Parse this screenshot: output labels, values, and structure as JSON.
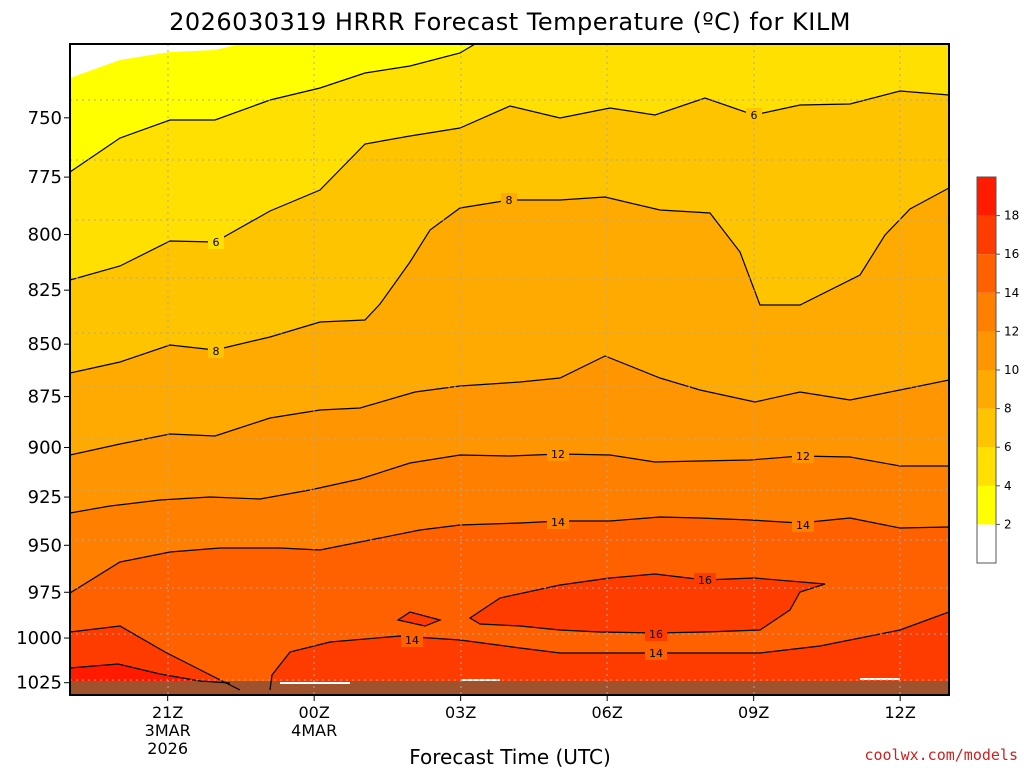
{
  "chart_data": {
    "type": "contour",
    "title": "2026030319 HRRR Forecast Temperature (ºC) for KILM",
    "xlabel": "Forecast Time (UTC)",
    "ylabel": "",
    "y_scale": "log-pressure",
    "y_unit": "hPa",
    "ylim": [
      1032,
      720
    ],
    "y_ticks": [
      "750",
      "775",
      "800",
      "825",
      "850",
      "875",
      "900",
      "925",
      "950",
      "975",
      "1000",
      "1025"
    ],
    "x_hours_range": [
      19,
      37
    ],
    "x_ticks": [
      {
        "hour": 21,
        "lines": [
          "21Z",
          "3MAR",
          "2026"
        ]
      },
      {
        "hour": 24,
        "lines": [
          "00Z",
          "4MAR"
        ]
      },
      {
        "hour": 27,
        "lines": [
          "03Z"
        ]
      },
      {
        "hour": 30,
        "lines": [
          "06Z"
        ]
      },
      {
        "hour": 33,
        "lines": [
          "09Z"
        ]
      },
      {
        "hour": 36,
        "lines": [
          "12Z"
        ]
      }
    ],
    "grid": true,
    "colorbar": {
      "placement": "right",
      "levels": [
        2,
        4,
        6,
        8,
        10,
        12,
        14,
        16,
        18
      ],
      "labels": [
        "2",
        "4",
        "6",
        "8",
        "10",
        "12",
        "14",
        "16",
        "18"
      ],
      "colors": [
        "#ffffff",
        "#ffff00",
        "#ffe000",
        "#ffc400",
        "#ffaa00",
        "#ff9500",
        "#ff7f00",
        "#ff6000",
        "#ff3c00",
        "#ff1a00"
      ]
    },
    "contour_labels": [
      "6",
      "6",
      "8",
      "8",
      "12",
      "12",
      "14",
      "14",
      "16",
      "16",
      "14",
      "14"
    ],
    "ground_color": "#a0522d"
  },
  "credit": "coolwx.com/models",
  "colors": {
    "credit": "#cc2222",
    "gridline": "#aaaaaa",
    "contour": "#000000"
  }
}
